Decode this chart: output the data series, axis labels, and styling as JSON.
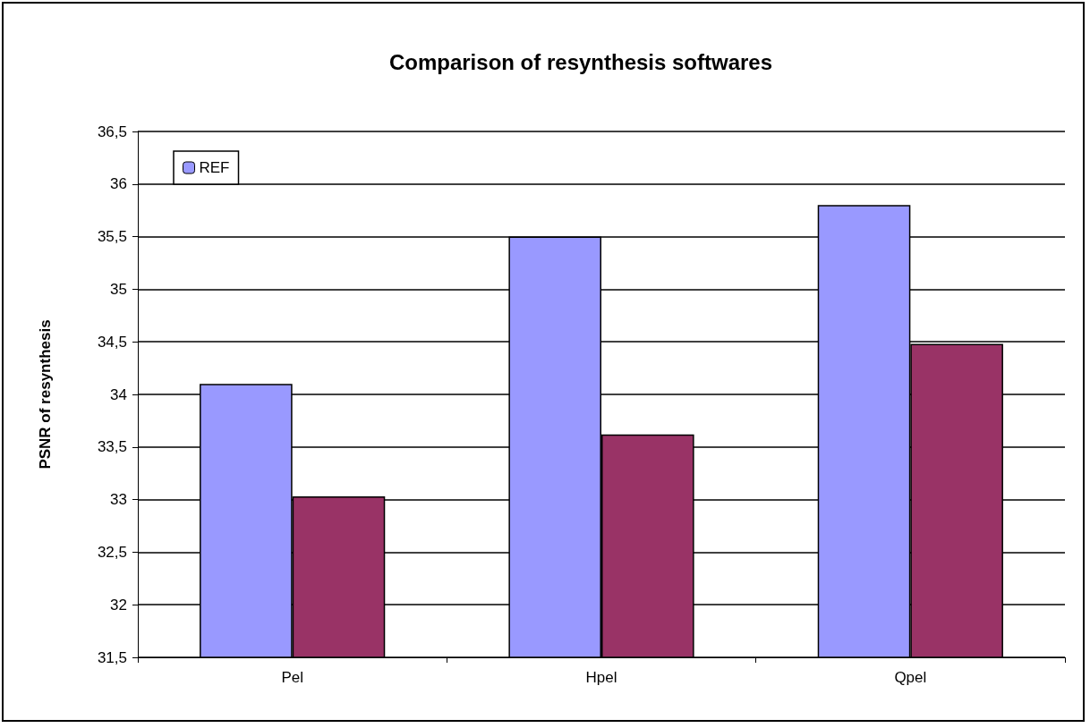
{
  "chart_data": {
    "type": "bar",
    "title": "Comparison of resynthesis softwares",
    "ylabel": "PSNR of resynthesis",
    "categories": [
      "Pel",
      "Hpel",
      "Qpel"
    ],
    "series": [
      {
        "name": "REF",
        "color": "#9999ff",
        "values": [
          34.1,
          35.5,
          35.8
        ]
      },
      {
        "color": "#993366",
        "values": [
          33.03,
          33.62,
          34.48
        ]
      }
    ],
    "ylim": [
      31.5,
      36.5
    ],
    "yticks": [
      {
        "value": 31.5,
        "label": "31,5"
      },
      32,
      {
        "value": 32.5,
        "label": "32,5"
      },
      33,
      {
        "value": 33.5,
        "label": "33,5"
      },
      34,
      {
        "value": 34.5,
        "label": "34,5"
      },
      35,
      {
        "value": 35.5,
        "label": "35,5"
      },
      36,
      {
        "value": 36.5,
        "label": "36,5"
      }
    ],
    "grid": "y",
    "legend": "top left"
  }
}
